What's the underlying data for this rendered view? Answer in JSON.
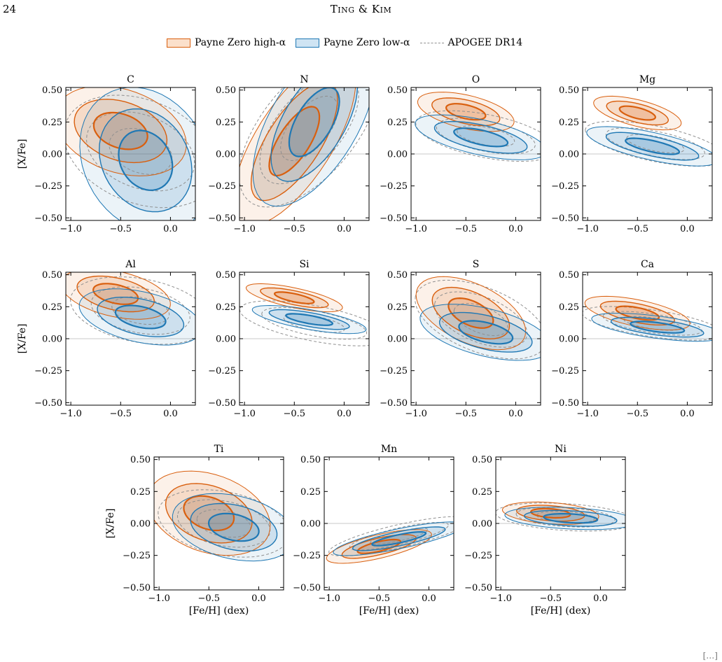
{
  "header": {
    "page_number": "24",
    "running_head": "Ting & Kim"
  },
  "legend": {
    "items": [
      {
        "label": "Payne Zero high-α",
        "color": "#d95f0e",
        "fill": "#fbe0cb"
      },
      {
        "label": "Payne Zero low-α",
        "color": "#1f78b4",
        "fill": "#cfe4f3"
      },
      {
        "label": "APOGEE DR14",
        "color": "#8f8f8f"
      }
    ]
  },
  "colors": {
    "high_alpha": "#d95f0e",
    "low_alpha": "#1f78b4",
    "apogee": "#8f8f8f",
    "zero_line": "#c8c8c8"
  },
  "corner_mark": "[…]",
  "chart_data": [
    {
      "type": "contour",
      "title": "C",
      "xlabel": "",
      "ylabel": "[X/Fe]",
      "xlim": [
        -1.05,
        0.25
      ],
      "ylim": [
        -0.52,
        0.52
      ],
      "xticks": [
        "−1.0",
        "−0.5",
        "0.0"
      ],
      "yticks": [
        "−0.50",
        "−0.25",
        "0.00",
        "0.25",
        "0.50"
      ],
      "high": {
        "x": -0.5,
        "y": 0.18,
        "sx": 0.3,
        "sy": 0.16,
        "rho": -0.3
      },
      "low": {
        "x": -0.25,
        "y": -0.05,
        "sx": 0.3,
        "sy": 0.26,
        "rho": -0.2
      },
      "apogee": {
        "x": -0.3,
        "y": 0.02,
        "sx": 0.35,
        "sy": 0.2,
        "rho": -0.3
      }
    },
    {
      "type": "contour",
      "title": "N",
      "xlabel": "",
      "ylabel": "",
      "xlim": [
        -1.05,
        0.25
      ],
      "ylim": [
        -0.52,
        0.52
      ],
      "xticks": [
        "−1.0",
        "−0.5",
        "0.0"
      ],
      "yticks": [
        "−0.50",
        "−0.25",
        "0.00",
        "0.25",
        "0.50"
      ],
      "high": {
        "x": -0.5,
        "y": 0.1,
        "sx": 0.28,
        "sy": 0.3,
        "rho": 0.7
      },
      "low": {
        "x": -0.3,
        "y": 0.25,
        "sx": 0.28,
        "sy": 0.3,
        "rho": 0.6
      },
      "apogee": {
        "x": -0.35,
        "y": 0.2,
        "sx": 0.32,
        "sy": 0.28,
        "rho": 0.6
      }
    },
    {
      "type": "contour",
      "title": "O",
      "xlabel": "",
      "ylabel": "",
      "xlim": [
        -1.05,
        0.25
      ],
      "ylim": [
        -0.52,
        0.52
      ],
      "xticks": [
        "−1.0",
        "−0.5",
        "0.0"
      ],
      "yticks": [
        "−0.50",
        "−0.25",
        "0.00",
        "0.25",
        "0.50"
      ],
      "high": {
        "x": -0.5,
        "y": 0.33,
        "sx": 0.22,
        "sy": 0.07,
        "rho": -0.5
      },
      "low": {
        "x": -0.35,
        "y": 0.13,
        "sx": 0.3,
        "sy": 0.08,
        "rho": -0.6
      },
      "apogee": {
        "x": -0.3,
        "y": 0.14,
        "sx": 0.32,
        "sy": 0.09,
        "rho": -0.5
      }
    },
    {
      "type": "contour",
      "title": "Mg",
      "xlabel": "",
      "ylabel": "",
      "xlim": [
        -1.05,
        0.25
      ],
      "ylim": [
        -0.52,
        0.52
      ],
      "xticks": [
        "−1.0",
        "−0.5",
        "0.0"
      ],
      "yticks": [
        "−0.50",
        "−0.25",
        "0.00",
        "0.25",
        "0.50"
      ],
      "high": {
        "x": -0.5,
        "y": 0.32,
        "sx": 0.2,
        "sy": 0.06,
        "rho": -0.6
      },
      "low": {
        "x": -0.35,
        "y": 0.06,
        "sx": 0.3,
        "sy": 0.07,
        "rho": -0.7
      },
      "apogee": {
        "x": -0.32,
        "y": 0.08,
        "sx": 0.32,
        "sy": 0.08,
        "rho": -0.6
      }
    },
    {
      "type": "contour",
      "title": "Al",
      "xlabel": "",
      "ylabel": "[X/Fe]",
      "xlim": [
        -1.05,
        0.25
      ],
      "ylim": [
        -0.52,
        0.52
      ],
      "xticks": [
        "−1.0",
        "−0.5",
        "0.0"
      ],
      "yticks": [
        "−0.50",
        "−0.25",
        "0.00",
        "0.25",
        "0.50"
      ],
      "high": {
        "x": -0.55,
        "y": 0.35,
        "sx": 0.25,
        "sy": 0.09,
        "rho": -0.4
      },
      "low": {
        "x": -0.3,
        "y": 0.17,
        "sx": 0.28,
        "sy": 0.1,
        "rho": -0.4
      },
      "apogee": {
        "x": -0.3,
        "y": 0.22,
        "sx": 0.32,
        "sy": 0.12,
        "rho": -0.3
      }
    },
    {
      "type": "contour",
      "title": "Si",
      "xlabel": "",
      "ylabel": "",
      "xlim": [
        -1.05,
        0.25
      ],
      "ylim": [
        -0.52,
        0.52
      ],
      "xticks": [
        "−1.0",
        "−0.5",
        "0.0"
      ],
      "yticks": [
        "−0.50",
        "−0.25",
        "0.00",
        "0.25",
        "0.50"
      ],
      "high": {
        "x": -0.5,
        "y": 0.32,
        "sx": 0.22,
        "sy": 0.05,
        "rho": -0.7
      },
      "low": {
        "x": -0.35,
        "y": 0.15,
        "sx": 0.26,
        "sy": 0.05,
        "rho": -0.7
      },
      "apogee": {
        "x": -0.3,
        "y": 0.12,
        "sx": 0.34,
        "sy": 0.08,
        "rho": -0.6
      }
    },
    {
      "type": "contour",
      "title": "S",
      "xlabel": "",
      "ylabel": "",
      "xlim": [
        -1.05,
        0.25
      ],
      "ylim": [
        -0.52,
        0.52
      ],
      "xticks": [
        "−1.0",
        "−0.5",
        "0.0"
      ],
      "yticks": [
        "−0.50",
        "−0.25",
        "0.00",
        "0.25",
        "0.50"
      ],
      "high": {
        "x": -0.45,
        "y": 0.2,
        "sx": 0.25,
        "sy": 0.13,
        "rho": -0.5
      },
      "low": {
        "x": -0.3,
        "y": 0.05,
        "sx": 0.3,
        "sy": 0.1,
        "rho": -0.5
      },
      "apogee": {
        "x": -0.35,
        "y": 0.15,
        "sx": 0.3,
        "sy": 0.14,
        "rho": -0.5
      }
    },
    {
      "type": "contour",
      "title": "Ca",
      "xlabel": "",
      "ylabel": "",
      "xlim": [
        -1.05,
        0.25
      ],
      "ylim": [
        -0.52,
        0.52
      ],
      "xticks": [
        "−1.0",
        "−0.5",
        "0.0"
      ],
      "yticks": [
        "−0.50",
        "−0.25",
        "0.00",
        "0.25",
        "0.50"
      ],
      "high": {
        "x": -0.5,
        "y": 0.2,
        "sx": 0.24,
        "sy": 0.06,
        "rho": -0.6
      },
      "low": {
        "x": -0.3,
        "y": 0.09,
        "sx": 0.3,
        "sy": 0.05,
        "rho": -0.6
      },
      "apogee": {
        "x": -0.35,
        "y": 0.12,
        "sx": 0.32,
        "sy": 0.06,
        "rho": -0.6
      }
    },
    {
      "type": "contour",
      "title": "Ti",
      "xlabel": "[Fe/H] (dex)",
      "ylabel": "[X/Fe]",
      "xlim": [
        -1.05,
        0.25
      ],
      "ylim": [
        -0.52,
        0.52
      ],
      "xticks": [
        "−1.0",
        "−0.5",
        "0.0"
      ],
      "yticks": [
        "−0.50",
        "−0.25",
        "0.00",
        "0.25",
        "0.50"
      ],
      "high": {
        "x": -0.5,
        "y": 0.08,
        "sx": 0.28,
        "sy": 0.15,
        "rho": -0.3
      },
      "low": {
        "x": -0.25,
        "y": -0.03,
        "sx": 0.28,
        "sy": 0.12,
        "rho": -0.3
      },
      "apogee": {
        "x": -0.35,
        "y": 0.0,
        "sx": 0.3,
        "sy": 0.12,
        "rho": -0.3
      }
    },
    {
      "type": "contour",
      "title": "Mn",
      "xlabel": "[Fe/H] (dex)",
      "ylabel": "",
      "xlim": [
        -1.05,
        0.25
      ],
      "ylim": [
        -0.52,
        0.52
      ],
      "xticks": [
        "−1.0",
        "−0.5",
        "0.0"
      ],
      "yticks": [
        "−0.50",
        "−0.25",
        "0.00",
        "0.25",
        "0.50"
      ],
      "high": {
        "x": -0.5,
        "y": -0.18,
        "sx": 0.24,
        "sy": 0.06,
        "rho": 0.7
      },
      "low": {
        "x": -0.3,
        "y": -0.12,
        "sx": 0.3,
        "sy": 0.06,
        "rho": 0.8
      },
      "apogee": {
        "x": -0.3,
        "y": -0.1,
        "sx": 0.32,
        "sy": 0.07,
        "rho": 0.8
      }
    },
    {
      "type": "contour",
      "title": "Ni",
      "xlabel": "[Fe/H] (dex)",
      "ylabel": "",
      "xlim": [
        -1.05,
        0.25
      ],
      "ylim": [
        -0.52,
        0.52
      ],
      "xticks": [
        "−1.0",
        "−0.5",
        "0.0"
      ],
      "yticks": [
        "−0.50",
        "−0.25",
        "0.00",
        "0.25",
        "0.50"
      ],
      "high": {
        "x": -0.5,
        "y": 0.08,
        "sx": 0.22,
        "sy": 0.04,
        "rho": -0.3
      },
      "low": {
        "x": -0.3,
        "y": 0.04,
        "sx": 0.3,
        "sy": 0.04,
        "rho": -0.3
      },
      "apogee": {
        "x": -0.35,
        "y": 0.05,
        "sx": 0.32,
        "sy": 0.05,
        "rho": -0.3
      }
    }
  ]
}
